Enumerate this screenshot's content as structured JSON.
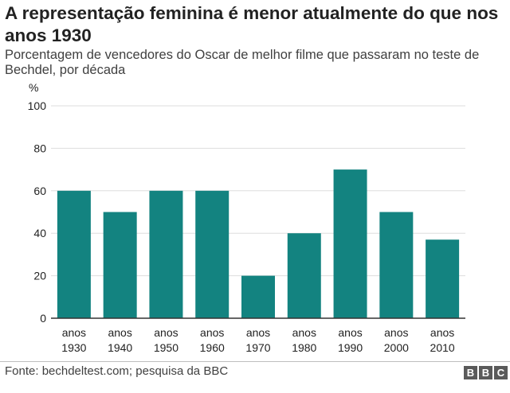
{
  "title": "A representação feminina é menor atualmente do que nos anos 1930",
  "subtitle": "Porcentagem de vencedores do Oscar de melhor filme que passaram no teste de Bechdel, por década",
  "source": "Fonte: bechdeltest.com; pesquisa da BBC",
  "logo_letters": [
    "B",
    "B",
    "C"
  ],
  "colors": {
    "bar": "#138380",
    "grid": "#dddddd",
    "axis": "#333333",
    "text": "#222222"
  },
  "chart_data": {
    "type": "bar",
    "title": "A representação feminina é menor atualmente do que nos anos 1930",
    "ylabel": "%",
    "ylim": [
      0,
      100
    ],
    "yticks": [
      0,
      20,
      40,
      60,
      80,
      100
    ],
    "grid": true,
    "categories": [
      [
        "anos",
        "1930"
      ],
      [
        "anos",
        "1940"
      ],
      [
        "anos",
        "1950"
      ],
      [
        "anos",
        "1960"
      ],
      [
        "anos",
        "1970"
      ],
      [
        "anos",
        "1980"
      ],
      [
        "anos",
        "1990"
      ],
      [
        "anos",
        "2000"
      ],
      [
        "anos",
        "2010"
      ]
    ],
    "values": [
      60,
      50,
      60,
      60,
      20,
      40,
      70,
      50,
      37
    ]
  }
}
